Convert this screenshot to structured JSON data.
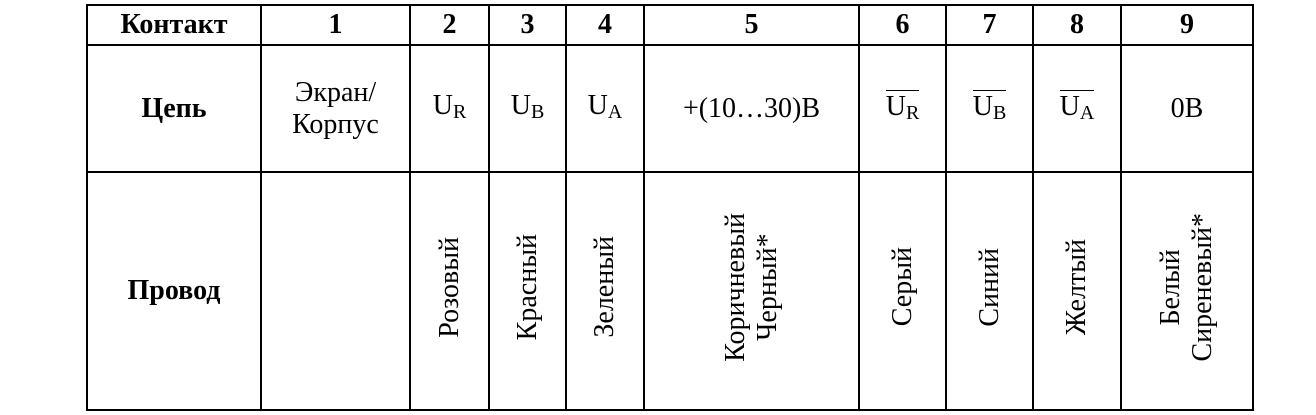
{
  "table": {
    "row_labels": {
      "contact": "Контакт",
      "circuit": "Цепь",
      "wire": "Провод"
    },
    "contacts": [
      "1",
      "2",
      "3",
      "4",
      "5",
      "6",
      "7",
      "8",
      "9"
    ],
    "circuits": [
      {
        "text": "Экран/ Корпус"
      },
      {
        "main": "U",
        "sub": "R",
        "inverted": false
      },
      {
        "main": "U",
        "sub": "B",
        "inverted": false
      },
      {
        "main": "U",
        "sub": "A",
        "inverted": false
      },
      {
        "text": "+(10…30)В"
      },
      {
        "main": "U",
        "sub": "R",
        "inverted": true
      },
      {
        "main": "U",
        "sub": "B",
        "inverted": true
      },
      {
        "main": "U",
        "sub": "A",
        "inverted": true
      },
      {
        "text": "0В"
      }
    ],
    "wires": [
      {
        "lines": []
      },
      {
        "lines": [
          "Розовый"
        ]
      },
      {
        "lines": [
          "Красный"
        ]
      },
      {
        "lines": [
          "Зеленый"
        ]
      },
      {
        "lines": [
          "Коричневый",
          "Черный*"
        ]
      },
      {
        "lines": [
          "Серый"
        ]
      },
      {
        "lines": [
          "Синий"
        ]
      },
      {
        "lines": [
          "Желтый"
        ]
      },
      {
        "lines": [
          "Белый",
          "Сиреневый*"
        ]
      }
    ]
  }
}
